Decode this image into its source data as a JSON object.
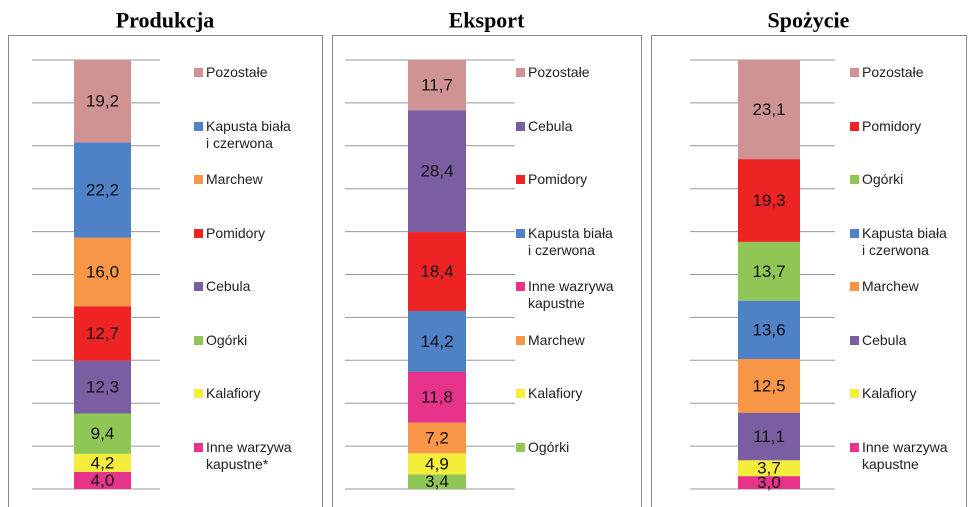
{
  "chart_data": [
    {
      "type": "stacked_bar",
      "title": "Produkcja",
      "ylim": [
        0,
        100
      ],
      "yticks": [
        0,
        10,
        20,
        30,
        40,
        50,
        60,
        70,
        80,
        90,
        100
      ],
      "grid": true,
      "series": [
        {
          "name": "Inne warzywa\nkapustne*",
          "color": "#e8338b",
          "values": [
            4.0
          ],
          "value_labels": [
            "4,0"
          ]
        },
        {
          "name": "Kalafiory",
          "color": "#f4ee3a",
          "values": [
            4.2
          ],
          "value_labels": [
            "4,2"
          ]
        },
        {
          "name": "Ogórki",
          "color": "#8fc655",
          "values": [
            9.4
          ],
          "value_labels": [
            "9,4"
          ]
        },
        {
          "name": "Cebula",
          "color": "#7b5ea1",
          "values": [
            12.3
          ],
          "value_labels": [
            "12,3"
          ]
        },
        {
          "name": "Pomidory",
          "color": "#ee2424",
          "values": [
            12.7
          ],
          "value_labels": [
            "12,7"
          ]
        },
        {
          "name": "Marchew",
          "color": "#f79646",
          "values": [
            16.0
          ],
          "value_labels": [
            "16,0"
          ]
        },
        {
          "name": "Kapusta biała\ni czerwona",
          "color": "#4f81c7",
          "values": [
            22.2
          ],
          "value_labels": [
            "22,2"
          ]
        },
        {
          "name": "Pozostałe",
          "color": "#d09393",
          "values": [
            19.2
          ],
          "value_labels": [
            "19,2"
          ]
        }
      ]
    },
    {
      "type": "stacked_bar",
      "title": "Eksport",
      "ylim": [
        0,
        100
      ],
      "yticks": [
        0,
        10,
        20,
        30,
        40,
        50,
        60,
        70,
        80,
        90,
        100
      ],
      "grid": true,
      "series": [
        {
          "name": "Ogórki",
          "color": "#8fc655",
          "values": [
            3.4
          ],
          "value_labels": [
            "3,4"
          ]
        },
        {
          "name": "Kalafiory",
          "color": "#f4ee3a",
          "values": [
            4.9
          ],
          "value_labels": [
            "4,9"
          ]
        },
        {
          "name": "Marchew",
          "color": "#f79646",
          "values": [
            7.2
          ],
          "value_labels": [
            "7,2"
          ]
        },
        {
          "name": "Inne wazrywa\nkapustne",
          "color": "#e8338b",
          "values": [
            11.8
          ],
          "value_labels": [
            "11,8"
          ]
        },
        {
          "name": "Kapusta biała\ni czerwona",
          "color": "#4f81c7",
          "values": [
            14.2
          ],
          "value_labels": [
            "14,2"
          ]
        },
        {
          "name": "Pomidory",
          "color": "#ee2424",
          "values": [
            18.4
          ],
          "value_labels": [
            "18,4"
          ]
        },
        {
          "name": "Cebula",
          "color": "#7b5ea1",
          "values": [
            28.4
          ],
          "value_labels": [
            "28,4"
          ]
        },
        {
          "name": "Pozostałe",
          "color": "#d09393",
          "values": [
            11.7
          ],
          "value_labels": [
            "11,7"
          ]
        }
      ]
    },
    {
      "type": "stacked_bar",
      "title": "Spożycie",
      "ylim": [
        0,
        100
      ],
      "yticks": [
        0,
        10,
        20,
        30,
        40,
        50,
        60,
        70,
        80,
        90,
        100
      ],
      "grid": true,
      "series": [
        {
          "name": "Inne warzywa\nkapustne",
          "color": "#e8338b",
          "values": [
            3.0
          ],
          "value_labels": [
            "3,0"
          ]
        },
        {
          "name": "Kalafiory",
          "color": "#f4ee3a",
          "values": [
            3.7
          ],
          "value_labels": [
            "3,7"
          ]
        },
        {
          "name": "Cebula",
          "color": "#7b5ea1",
          "values": [
            11.1
          ],
          "value_labels": [
            "11,1"
          ]
        },
        {
          "name": "Marchew",
          "color": "#f79646",
          "values": [
            12.5
          ],
          "value_labels": [
            "12,5"
          ]
        },
        {
          "name": "Kapusta biała\ni czerwona",
          "color": "#4f81c7",
          "values": [
            13.6
          ],
          "value_labels": [
            "13,6"
          ]
        },
        {
          "name": "Ogórki",
          "color": "#8fc655",
          "values": [
            13.7
          ],
          "value_labels": [
            "13,7"
          ]
        },
        {
          "name": "Pomidory",
          "color": "#ee2424",
          "values": [
            19.3
          ],
          "value_labels": [
            "19,3"
          ]
        },
        {
          "name": "Pozostałe",
          "color": "#d09393",
          "values": [
            23.1
          ],
          "value_labels": [
            "23,1"
          ]
        }
      ]
    }
  ]
}
